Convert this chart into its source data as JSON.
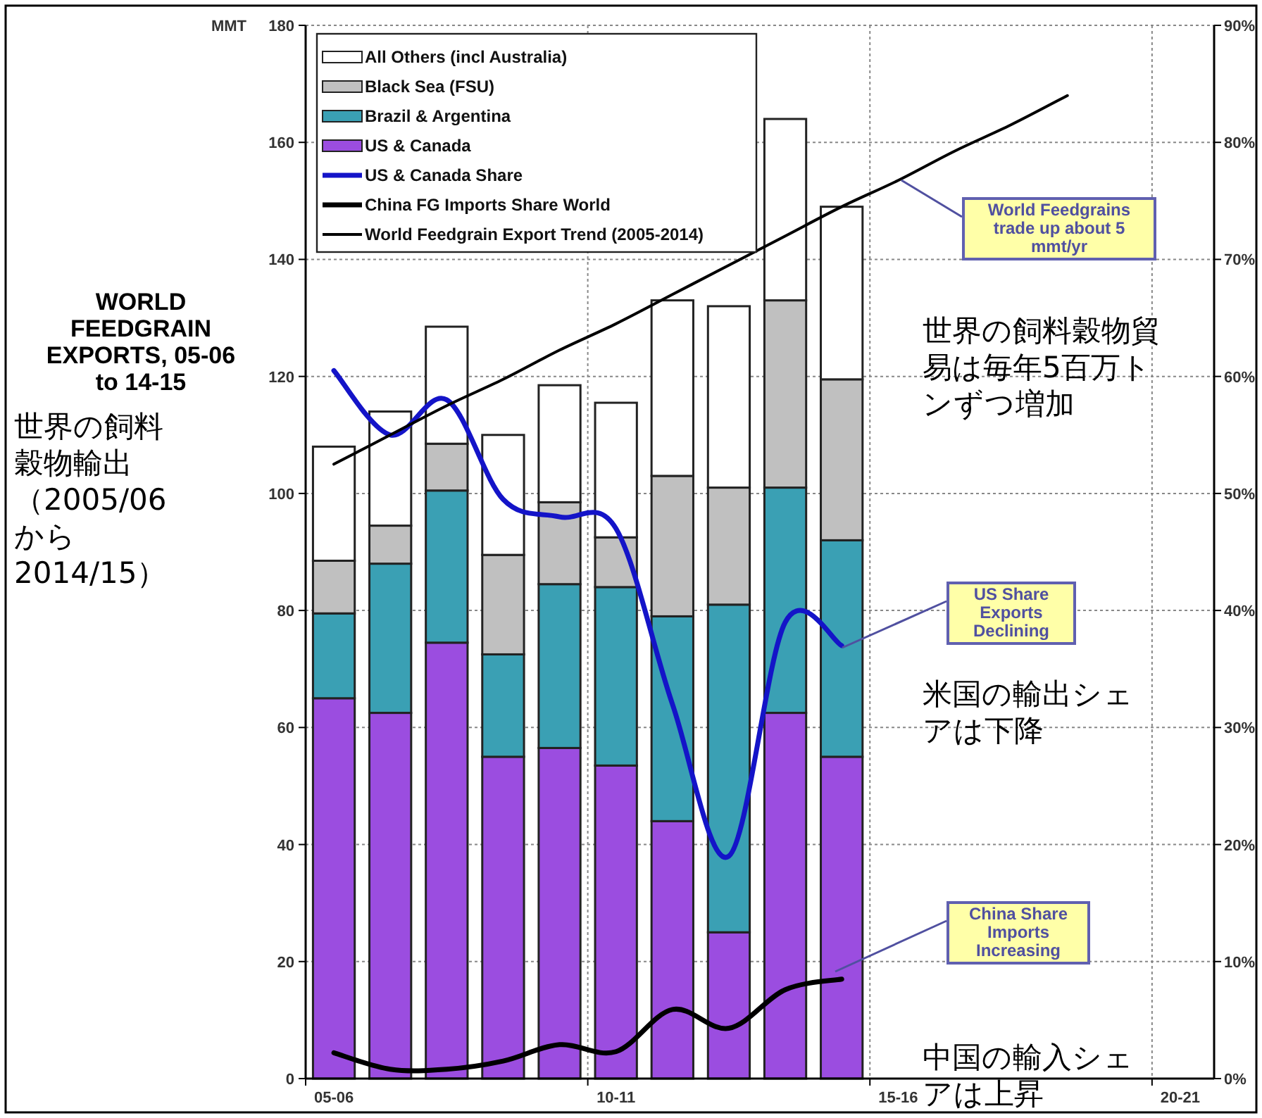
{
  "chart_data": {
    "type": "bar",
    "title": "WORLD FEEDGRAIN EXPORTS, 05-06 to 14-15",
    "ylabel": "MMT",
    "stacked": true,
    "categories": [
      "05-06",
      null,
      null,
      null,
      null,
      "10-11",
      null,
      null,
      null,
      null,
      "15-16",
      null,
      null,
      null,
      null,
      "20-21"
    ],
    "ylim": [
      0,
      180
    ],
    "yticks": [
      0,
      20,
      40,
      60,
      80,
      100,
      120,
      140,
      160,
      180
    ],
    "y2lim": [
      0,
      90
    ],
    "y2ticks": [
      {
        "value": 0,
        "label": "0%"
      },
      {
        "value": 10,
        "label": "10%"
      },
      {
        "value": 20,
        "label": "20%"
      },
      {
        "value": 30,
        "label": "30%"
      },
      {
        "value": 40,
        "label": "40%"
      },
      {
        "value": 50,
        "label": "50%"
      },
      {
        "value": 60,
        "label": "60%"
      },
      {
        "value": 70,
        "label": "70%"
      },
      {
        "value": 80,
        "label": "80%"
      },
      {
        "value": 90,
        "label": "90%"
      }
    ],
    "grid": true,
    "legend": "top left",
    "series": [
      {
        "name": "US & Canada",
        "color": "#9b4de0",
        "values": [
          65,
          62.5,
          74.5,
          55,
          56.5,
          53.5,
          44,
          25,
          62.5,
          55,
          null,
          null,
          null,
          null,
          null,
          null
        ]
      },
      {
        "name": "Brazil & Argentina",
        "color": "#3aa0b4",
        "values": [
          14.5,
          25.5,
          26,
          17.5,
          28,
          30.5,
          35,
          56,
          38.5,
          37,
          null,
          null,
          null,
          null,
          null,
          null
        ]
      },
      {
        "name": "Black Sea (FSU)",
        "color": "#c0c0c0",
        "values": [
          9,
          6.5,
          8,
          17,
          14,
          8.5,
          24,
          20,
          32,
          27.5,
          null,
          null,
          null,
          null,
          null,
          null
        ]
      },
      {
        "name": "All Others (incl Australia)",
        "color": "#ffffff",
        "values": [
          19.5,
          19.5,
          20,
          20.5,
          20,
          23,
          30,
          31,
          31,
          29.5,
          null,
          null,
          null,
          null,
          null,
          null
        ]
      },
      {
        "name": "US & Canada Share",
        "type": "line",
        "axis": "y2",
        "color": "#1414c8",
        "values": [
          60.5,
          55,
          58,
          49.5,
          48,
          47,
          32,
          19,
          39,
          37,
          null,
          null,
          null,
          null,
          null,
          null
        ]
      },
      {
        "name": "China FG Imports Share World",
        "type": "line",
        "axis": "y2",
        "color": "#000000",
        "values": [
          2.2,
          0.8,
          0.8,
          1.5,
          2.9,
          2.3,
          5.9,
          4.3,
          7.6,
          8.5,
          null,
          null,
          null,
          null,
          null,
          null
        ]
      },
      {
        "name": "World Feedgrain Export Trend (2005-2014)",
        "type": "line",
        "line_style": "solid",
        "color": "#000000",
        "values": [
          105,
          110,
          115,
          119.5,
          124.5,
          129,
          134,
          139,
          144,
          149,
          153.5,
          158.5,
          163,
          168,
          null,
          null
        ]
      }
    ],
    "annotations": [
      "世界の飼料穀物輸出（2005/06から2014/15）",
      "World Feedgrains trade up about 5 mmt/yr",
      "世界の飼料穀物貿易は毎年5百万トンずつ増加",
      "US Share Exports Declining",
      "米国の輸出シェアは下降",
      "China Share Imports Increasing",
      "中国の輸入シェアは上昇"
    ]
  }
}
